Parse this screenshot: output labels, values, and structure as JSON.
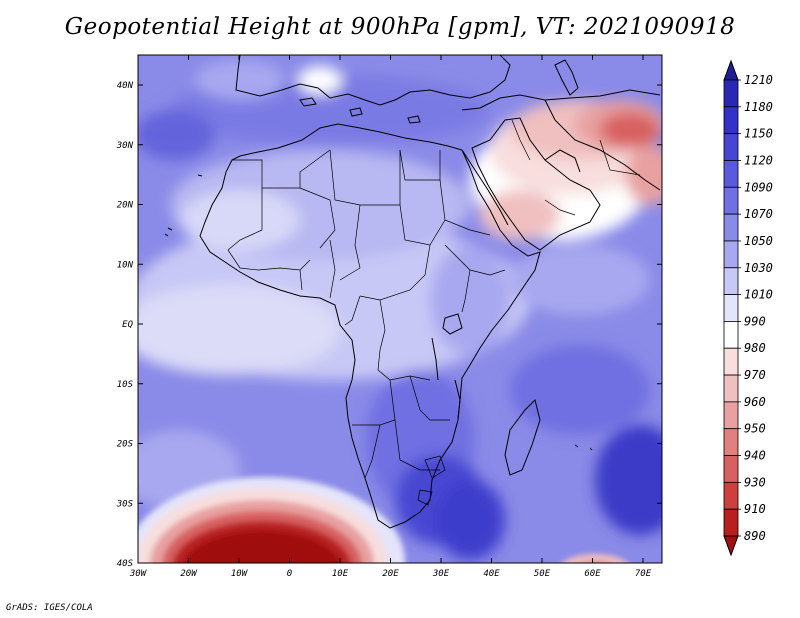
{
  "title": "Geopotential Height at 900hPa [gpm], VT: 2021090918",
  "credit": "GrADS: IGES/COLA",
  "map": {
    "lat_labels": [
      "40N",
      "30N",
      "20N",
      "10N",
      "EQ",
      "10S",
      "20S",
      "30S",
      "40S"
    ],
    "lon_labels": [
      "30W",
      "20W",
      "10W",
      "0",
      "10E",
      "20E",
      "30E",
      "40E",
      "50E",
      "60E",
      "70E"
    ]
  },
  "colorbar": {
    "levels": [
      "1210",
      "1180",
      "1150",
      "1120",
      "1090",
      "1070",
      "1050",
      "1030",
      "1010",
      "990",
      "980",
      "970",
      "960",
      "950",
      "940",
      "930",
      "910",
      "890"
    ],
    "colors": [
      "#1e1e96",
      "#2828b4",
      "#3232c8",
      "#4646d2",
      "#5a5adc",
      "#7070e2",
      "#8a8ae8",
      "#a8a8f0",
      "#c8c8f6",
      "#e4e4fa",
      "#ffffff",
      "#f8dede",
      "#f0c0c0",
      "#e8a0a0",
      "#e08080",
      "#d86060",
      "#cc4040",
      "#b82020",
      "#a01010"
    ]
  },
  "colors": {
    "ocean_base": "#8a8ae8",
    "land_base": "#c8c8f6",
    "border": "#000000"
  }
}
